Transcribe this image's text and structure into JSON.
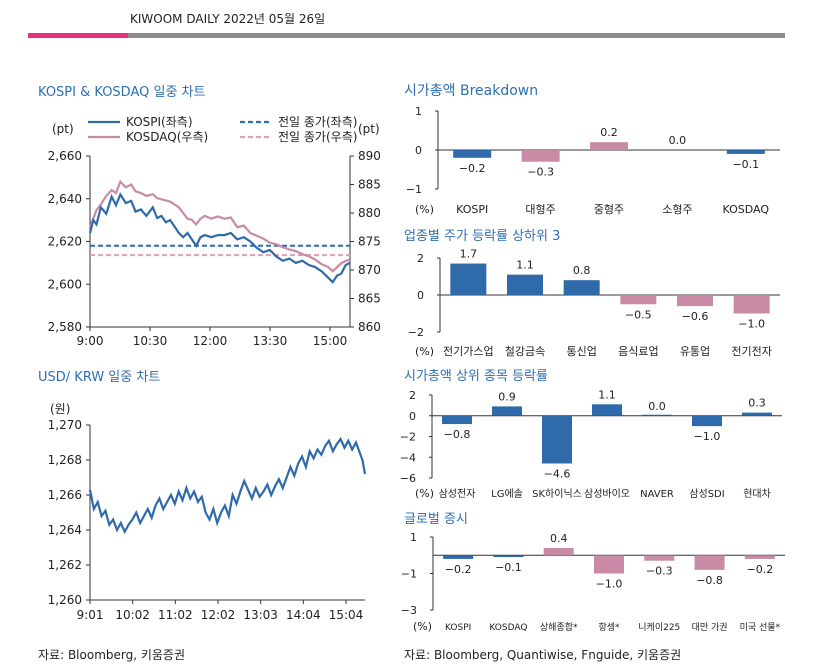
{
  "header": {
    "title": "KIWOOM DAILY 2022년 05월 26일"
  },
  "colors": {
    "blue": "#2f6aaa",
    "pink": "#c98aa5",
    "pink_dash": "#d9a0b5",
    "accent": "#e8317d",
    "title": "#2f6fb0"
  },
  "left": {
    "kospi_title": "KOSPI & KOSDAQ 일중 차트",
    "usd_title": "USD/ KRW 일중 차트",
    "source": "자료: Bloomberg, 키움증권"
  },
  "right": {
    "breakdown_title": "시가총액 Breakdown",
    "sector_title": "업종별 주가 등락률 상하위 3",
    "top_title": "시가총액 상위 종목 등락률",
    "global_title": "글로벌 증시",
    "source": "자료: Bloomberg, Quantiwise, Fnguide, 키움증권"
  },
  "chart_data": [
    {
      "id": "kospi_kosdaq",
      "type": "line",
      "x_ticks": [
        "9:00",
        "10:30",
        "12:00",
        "13:30",
        "15:00"
      ],
      "ylabel_left": "(pt)",
      "ylabel_right": "(pt)",
      "ylim_left": [
        2580,
        2660
      ],
      "yticks_left": [
        "2,580",
        "2,600",
        "2,620",
        "2,640",
        "2,660"
      ],
      "ylim_right": [
        860,
        890
      ],
      "yticks_right": [
        "860",
        "865",
        "870",
        "875",
        "880",
        "885",
        "890"
      ],
      "prev_close_left": 2618.0,
      "prev_close_right": 872.6,
      "legend": [
        "KOSPI(좌측)",
        "KOSDAQ(우측)",
        "전일 종가(좌측)",
        "전일 종가(우측)"
      ],
      "series": [
        {
          "name": "KOSPI(좌측)",
          "axis": "left",
          "points": [
            [
              0,
              2624
            ],
            [
              3,
              2630
            ],
            [
              6,
              2628
            ],
            [
              10,
              2636
            ],
            [
              15,
              2633
            ],
            [
              20,
              2641
            ],
            [
              24,
              2637
            ],
            [
              28,
              2642
            ],
            [
              33,
              2638
            ],
            [
              38,
              2639
            ],
            [
              42,
              2634
            ],
            [
              47,
              2635
            ],
            [
              52,
              2632
            ],
            [
              58,
              2636
            ],
            [
              62,
              2631
            ],
            [
              66,
              2632
            ],
            [
              70,
              2629
            ],
            [
              74,
              2630
            ],
            [
              78,
              2627
            ],
            [
              82,
              2624
            ],
            [
              86,
              2622
            ],
            [
              90,
              2624
            ],
            [
              94,
              2621
            ],
            [
              98,
              2618
            ],
            [
              102,
              2622
            ],
            [
              106,
              2623
            ],
            [
              112,
              2622
            ],
            [
              118,
              2623
            ],
            [
              124,
              2623
            ],
            [
              130,
              2624
            ],
            [
              136,
              2621
            ],
            [
              142,
              2622
            ],
            [
              148,
              2620
            ],
            [
              154,
              2617
            ],
            [
              160,
              2615
            ],
            [
              166,
              2616
            ],
            [
              172,
              2613
            ],
            [
              178,
              2611
            ],
            [
              184,
              2612
            ],
            [
              190,
              2610
            ],
            [
              196,
              2611
            ],
            [
              202,
              2609
            ],
            [
              208,
              2608
            ],
            [
              214,
              2606
            ],
            [
              220,
              2603
            ],
            [
              224,
              2601
            ],
            [
              228,
              2604
            ],
            [
              232,
              2605
            ],
            [
              236,
              2609
            ],
            [
              240,
              2610
            ]
          ]
        },
        {
          "name": "KOSDAQ(우측)",
          "axis": "right",
          "points": [
            [
              0,
              877.5
            ],
            [
              3,
              879
            ],
            [
              6,
              880.5
            ],
            [
              10,
              881.5
            ],
            [
              15,
              883
            ],
            [
              20,
              884
            ],
            [
              24,
              883.5
            ],
            [
              28,
              885.5
            ],
            [
              33,
              884.5
            ],
            [
              38,
              885
            ],
            [
              42,
              883.8
            ],
            [
              47,
              883.5
            ],
            [
              52,
              883
            ],
            [
              58,
              883.3
            ],
            [
              62,
              882.6
            ],
            [
              66,
              882.4
            ],
            [
              70,
              882.2
            ],
            [
              74,
              882
            ],
            [
              78,
              881.5
            ],
            [
              82,
              881
            ],
            [
              86,
              880
            ],
            [
              90,
              879
            ],
            [
              94,
              878.8
            ],
            [
              98,
              878
            ],
            [
              102,
              879
            ],
            [
              106,
              879.5
            ],
            [
              112,
              879
            ],
            [
              118,
              879.4
            ],
            [
              124,
              879
            ],
            [
              130,
              879.2
            ],
            [
              136,
              877.5
            ],
            [
              142,
              877.8
            ],
            [
              148,
              876.5
            ],
            [
              154,
              876
            ],
            [
              160,
              875.5
            ],
            [
              166,
              874.8
            ],
            [
              172,
              874.5
            ],
            [
              178,
              874
            ],
            [
              184,
              873.6
            ],
            [
              190,
              873.3
            ],
            [
              196,
              872.8
            ],
            [
              202,
              872.4
            ],
            [
              208,
              871.8
            ],
            [
              214,
              871
            ],
            [
              220,
              870.5
            ],
            [
              224,
              869.8
            ],
            [
              228,
              870.5
            ],
            [
              232,
              871.2
            ],
            [
              236,
              871.6
            ],
            [
              240,
              871.8
            ]
          ]
        }
      ]
    },
    {
      "id": "usdkrw",
      "type": "line",
      "x_ticks": [
        "9:01",
        "10:02",
        "11:02",
        "12:02",
        "13:03",
        "14:04",
        "15:04"
      ],
      "ylabel": "(원)",
      "ylim": [
        1260,
        1270
      ],
      "yticks": [
        "1,260",
        "1,262",
        "1,264",
        "1,266",
        "1,268",
        "1,270"
      ],
      "series": [
        {
          "name": "USD/KRW",
          "points": [
            [
              0,
              1266.3
            ],
            [
              3,
              1265.2
            ],
            [
              6,
              1265.6
            ],
            [
              9,
              1264.8
            ],
            [
              12,
              1265.1
            ],
            [
              15,
              1264.3
            ],
            [
              18,
              1264.6
            ],
            [
              21,
              1264.0
            ],
            [
              24,
              1264.4
            ],
            [
              27,
              1263.9
            ],
            [
              30,
              1264.3
            ],
            [
              33,
              1264.6
            ],
            [
              36,
              1265.0
            ],
            [
              39,
              1264.4
            ],
            [
              42,
              1264.8
            ],
            [
              45,
              1265.2
            ],
            [
              48,
              1264.7
            ],
            [
              51,
              1265.4
            ],
            [
              54,
              1265.8
            ],
            [
              57,
              1265.2
            ],
            [
              60,
              1265.6
            ],
            [
              63,
              1266.0
            ],
            [
              66,
              1265.5
            ],
            [
              69,
              1266.2
            ],
            [
              72,
              1265.7
            ],
            [
              75,
              1266.4
            ],
            [
              78,
              1265.8
            ],
            [
              81,
              1266.2
            ],
            [
              84,
              1265.6
            ],
            [
              87,
              1265.9
            ],
            [
              90,
              1265.0
            ],
            [
              93,
              1264.6
            ],
            [
              96,
              1265.2
            ],
            [
              99,
              1264.4
            ],
            [
              102,
              1265.0
            ],
            [
              105,
              1265.4
            ],
            [
              108,
              1264.8
            ],
            [
              111,
              1266.0
            ],
            [
              114,
              1265.5
            ],
            [
              117,
              1266.2
            ],
            [
              120,
              1266.8
            ],
            [
              123,
              1266.3
            ],
            [
              126,
              1265.8
            ],
            [
              129,
              1266.4
            ],
            [
              132,
              1265.9
            ],
            [
              135,
              1266.2
            ],
            [
              138,
              1266.6
            ],
            [
              141,
              1266.0
            ],
            [
              144,
              1266.5
            ],
            [
              147,
              1266.9
            ],
            [
              150,
              1266.4
            ],
            [
              153,
              1267.0
            ],
            [
              156,
              1267.6
            ],
            [
              159,
              1267.1
            ],
            [
              162,
              1267.8
            ],
            [
              165,
              1268.2
            ],
            [
              168,
              1267.6
            ],
            [
              171,
              1268.5
            ],
            [
              174,
              1268.1
            ],
            [
              177,
              1268.6
            ],
            [
              180,
              1268.3
            ],
            [
              183,
              1268.8
            ],
            [
              186,
              1269.1
            ],
            [
              189,
              1268.5
            ],
            [
              192,
              1268.9
            ],
            [
              195,
              1269.2
            ],
            [
              198,
              1268.7
            ],
            [
              201,
              1269.1
            ],
            [
              204,
              1268.6
            ],
            [
              207,
              1269.0
            ],
            [
              210,
              1268.4
            ],
            [
              212,
              1268.0
            ],
            [
              214,
              1267.2
            ]
          ]
        }
      ]
    },
    {
      "id": "breakdown",
      "type": "bar",
      "ylabel": "(%)",
      "ylim": [
        -1,
        1
      ],
      "yticks": [
        "1",
        "0",
        "−1"
      ],
      "categories": [
        "KOSPI",
        "대형주",
        "중형주",
        "소형주",
        "KOSDAQ"
      ],
      "values": [
        -0.2,
        -0.3,
        0.2,
        0.0,
        -0.1
      ],
      "labels": [
        "−0.2",
        "−0.3",
        "0.2",
        "0.0",
        "−0.1"
      ],
      "bar_colors": [
        "blue",
        "pink",
        "pink",
        "pink",
        "blue"
      ]
    },
    {
      "id": "sector",
      "type": "bar",
      "ylabel": "(%)",
      "ylim": [
        -2,
        2
      ],
      "yticks": [
        "2",
        "0",
        "−2"
      ],
      "categories": [
        "전기가스업",
        "철강금속",
        "통신업",
        "음식료업",
        "유통업",
        "전기전자"
      ],
      "values": [
        1.7,
        1.1,
        0.8,
        -0.5,
        -0.6,
        -1.0
      ],
      "labels": [
        "1.7",
        "1.1",
        "0.8",
        "−0.5",
        "−0.6",
        "−1.0"
      ],
      "bar_colors": [
        "blue",
        "blue",
        "blue",
        "pink",
        "pink",
        "pink"
      ]
    },
    {
      "id": "top_caps",
      "type": "bar",
      "ylabel": "(%)",
      "ylim": [
        -6,
        2
      ],
      "yticks": [
        "2",
        "0",
        "−2",
        "−4",
        "−6"
      ],
      "categories": [
        "삼성전자",
        "LG에솔",
        "SK하이닉스",
        "삼성바이오",
        "NAVER",
        "삼성SDI",
        "현대차"
      ],
      "values": [
        -0.8,
        0.9,
        -4.6,
        1.1,
        0.0,
        -1.0,
        0.3
      ],
      "labels": [
        "−0.8",
        "0.9",
        "−4.6",
        "1.1",
        "0.0",
        "−1.0",
        "0.3"
      ],
      "bar_colors": [
        "blue",
        "blue",
        "blue",
        "blue",
        "blue",
        "blue",
        "blue"
      ]
    },
    {
      "id": "global",
      "type": "bar",
      "ylabel": "(%)",
      "ylim": [
        -3,
        1
      ],
      "yticks": [
        "1",
        "−1",
        "−3"
      ],
      "categories": [
        "KOSPI",
        "KOSDAQ",
        "상해종합*",
        "항셍*",
        "니케이225",
        "대만 가권",
        "미국 선물*"
      ],
      "values": [
        -0.2,
        -0.1,
        0.4,
        -1.0,
        -0.3,
        -0.8,
        -0.2
      ],
      "labels": [
        "−0.2",
        "−0.1",
        "0.4",
        "−1.0",
        "−0.3",
        "−0.8",
        "−0.2"
      ],
      "bar_colors": [
        "blue",
        "blue",
        "pink",
        "pink",
        "pink",
        "pink",
        "pink"
      ]
    }
  ]
}
